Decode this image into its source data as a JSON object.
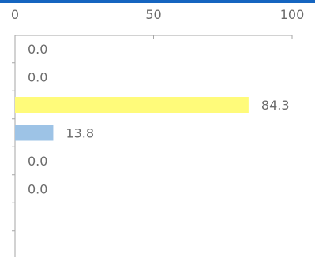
{
  "colors": {
    "top_bar": "#1565c0",
    "axis": "#a6a6a6",
    "bar_highlight": "#fffb7a",
    "bar_secondary": "#9dc3e6",
    "text": "#6b6b6b"
  },
  "chart_data": {
    "type": "bar",
    "orientation": "horizontal",
    "xaxis_position": "top",
    "xlim": [
      0,
      100
    ],
    "xticks": [
      "0",
      "50",
      "100"
    ],
    "grid": false,
    "title": "",
    "xlabel": "",
    "ylabel": "",
    "categories": [
      "",
      "",
      "",
      "",
      "",
      "",
      "",
      ""
    ],
    "values": [
      0.0,
      0.0,
      84.3,
      13.8,
      0.0,
      0.0,
      null,
      null
    ],
    "value_labels": [
      "0.0",
      "0.0",
      "84.3",
      "13.8",
      "0.0",
      "0.0",
      "",
      ""
    ],
    "bar_colors": [
      "#9dc3e6",
      "#9dc3e6",
      "#fffb7a",
      "#9dc3e6",
      "#9dc3e6",
      "#9dc3e6",
      "#9dc3e6",
      "#9dc3e6"
    ]
  }
}
